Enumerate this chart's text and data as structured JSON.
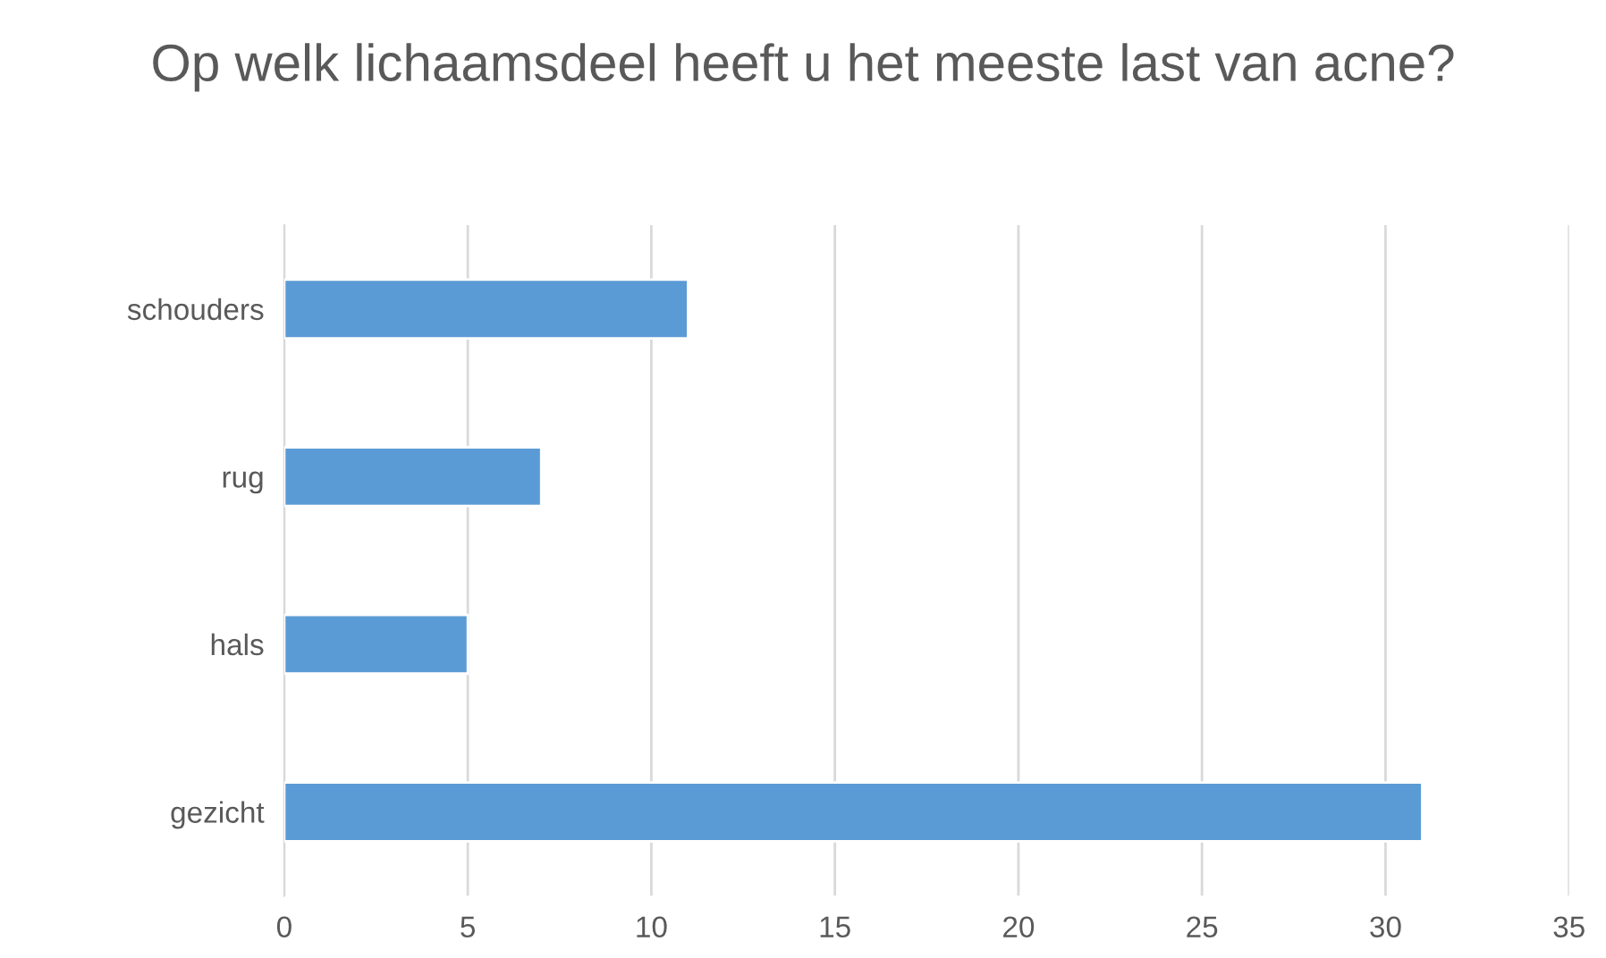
{
  "chart_data": {
    "type": "bar",
    "orientation": "horizontal",
    "title": "Op welk lichaamsdeel heeft u het meeste last van acne?",
    "categories": [
      "schouders",
      "rug",
      "hals",
      "gezicht"
    ],
    "values": [
      11,
      7,
      5,
      31
    ],
    "color": "#5b9bd5",
    "xlim": [
      0,
      35
    ],
    "xticks": [
      0,
      5,
      10,
      15,
      20,
      25,
      30,
      35
    ],
    "grid": "x"
  }
}
